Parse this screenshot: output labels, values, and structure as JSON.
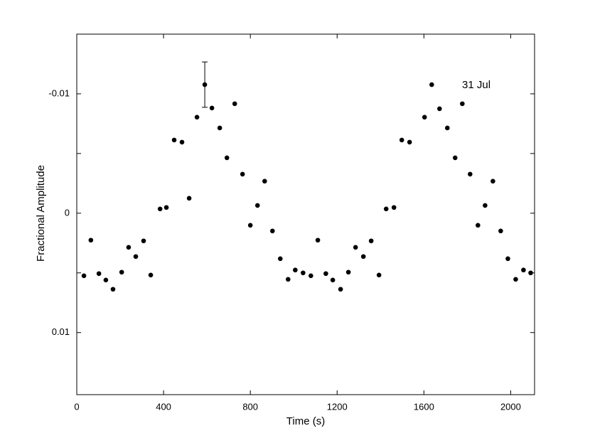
{
  "chart_data": {
    "type": "scatter",
    "annotation": "31 Jul",
    "xlabel": "Time (s)",
    "ylabel": "Fractional Amplitude",
    "xlim": [
      0,
      2110
    ],
    "xticks": [
      0,
      400,
      800,
      1200,
      1600,
      2000
    ],
    "ylim": [
      -0.015,
      0.0152
    ],
    "yticks": [
      -0.01,
      0,
      0.01
    ],
    "yminorticks": [
      -0.005,
      0.005
    ],
    "y_inverted": true,
    "color": "#000000",
    "x": [
      33,
      65,
      102,
      134,
      167,
      207,
      239,
      272,
      308,
      341,
      384,
      413,
      449,
      485,
      518,
      554,
      590,
      623,
      659,
      692,
      728,
      764,
      800,
      833,
      866,
      902,
      938,
      974,
      1007,
      1043,
      1079,
      1111,
      1148,
      1180,
      1216,
      1252,
      1285,
      1321,
      1357,
      1393,
      1426,
      1462,
      1498,
      1534,
      1603,
      1636,
      1672,
      1708,
      1744,
      1777,
      1813,
      1849,
      1882,
      1918,
      1954,
      1987,
      2023,
      2059,
      2092
    ],
    "values": [
      0.00524,
      0.00226,
      0.00506,
      0.0056,
      0.00637,
      0.00494,
      0.00286,
      0.00363,
      0.00232,
      0.00518,
      -0.00036,
      -0.00048,
      -0.00613,
      -0.00595,
      -0.00125,
      -0.00804,
      -0.01077,
      -0.00881,
      -0.00714,
      -0.00464,
      -0.00917,
      -0.00327,
      0.00101,
      -0.00065,
      -0.00268,
      0.00149,
      0.00381,
      0.00554,
      0.00476,
      0.005,
      0.00524,
      0.00226,
      0.00506,
      0.0056,
      0.00637,
      0.00494,
      0.00286,
      0.00363,
      0.00232,
      0.00518,
      -0.00036,
      -0.00048,
      -0.00613,
      -0.00595,
      -0.00804,
      -0.01077,
      -0.00875,
      -0.00714,
      -0.00464,
      -0.00917,
      -0.00327,
      0.00101,
      -0.00065,
      -0.00268,
      0.00149,
      0.00381,
      0.00554,
      0.00476,
      0.005
    ],
    "errors": [
      null,
      null,
      null,
      null,
      null,
      null,
      null,
      null,
      null,
      null,
      null,
      null,
      null,
      null,
      null,
      null,
      0.0019,
      null,
      null,
      null,
      null,
      null,
      null,
      null,
      null,
      null,
      null,
      null,
      null,
      null,
      null,
      null,
      null,
      null,
      null,
      null,
      null,
      null,
      null,
      null,
      null,
      null,
      null,
      null,
      null,
      null,
      null,
      null,
      null,
      null,
      null,
      null,
      null,
      null,
      null,
      null,
      null,
      null,
      null
    ]
  }
}
